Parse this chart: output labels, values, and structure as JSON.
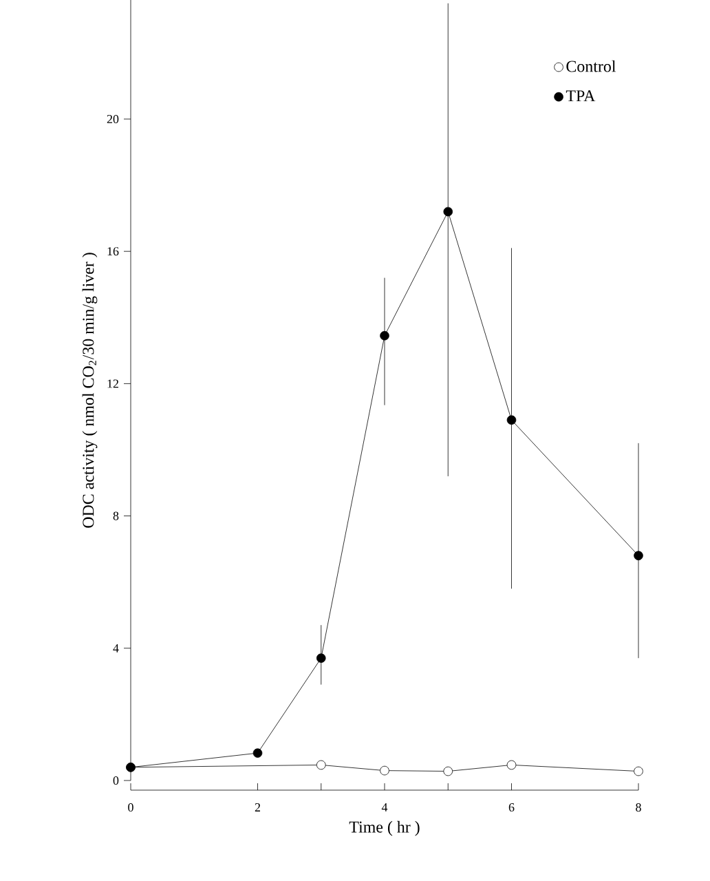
{
  "chart_data": {
    "type": "line",
    "xlabel": "Time ( hr )",
    "ylabel": "ODC activity ( nmol CO$_{2}$/30 min/g liver )",
    "xlim": [
      0,
      8
    ],
    "ylim": [
      0,
      23.6
    ],
    "xticks": [
      0,
      2,
      {
        "value": 3,
        "label": null
      },
      4,
      {
        "value": 5,
        "label": null
      },
      6,
      8
    ],
    "yticks": [
      0,
      4,
      8,
      12,
      16,
      20
    ],
    "legend": "top right",
    "marker": "circle",
    "line_style": "solid",
    "series": [
      {
        "name": "Control",
        "color": "#000000",
        "x": [
          0,
          3,
          4,
          5,
          6,
          8
        ],
        "values": [
          0.4,
          0.47,
          0.3,
          0.28,
          0.47,
          0.28
        ]
      },
      {
        "name": "TPA",
        "color": "#000000",
        "x": [
          0,
          2,
          3,
          4,
          5,
          6,
          8
        ],
        "values": [
          0.4,
          0.83,
          3.7,
          13.45,
          17.2,
          10.9,
          6.8
        ],
        "errors": [
          null,
          null,
          [
            2.9,
            4.7
          ],
          [
            11.35,
            15.2
          ],
          [
            9.2,
            23.5
          ],
          [
            5.8,
            16.1
          ],
          [
            3.7,
            10.2
          ]
        ]
      }
    ]
  }
}
